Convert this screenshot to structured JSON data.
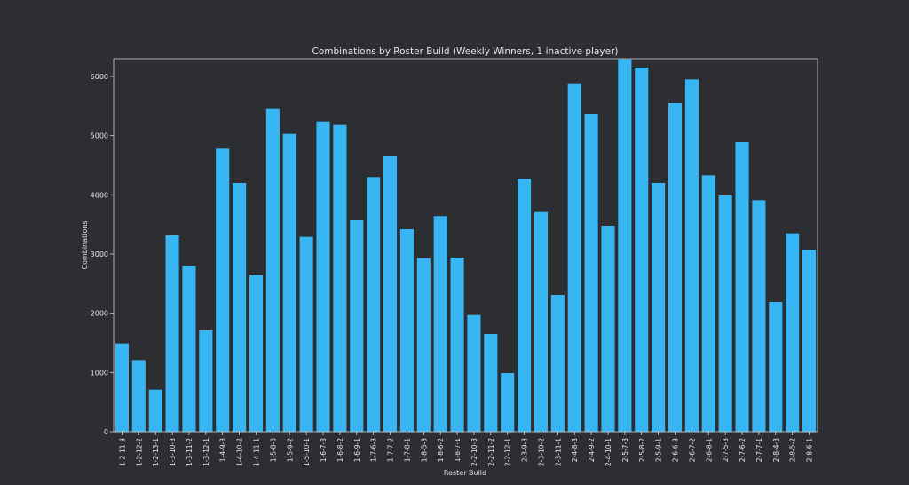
{
  "theme": {
    "background": "#2d2e32",
    "bar_color": "#38b6f4",
    "text_color": "#e6e6e6",
    "axis_color": "#d0d0d0"
  },
  "chart_data": {
    "type": "bar",
    "title": "Combinations by Roster Build (Weekly Winners, 1 inactive player)",
    "xlabel": "Roster Build",
    "ylabel": "Combinations",
    "ylim": [
      0,
      6300
    ],
    "yticks": [
      0,
      1000,
      2000,
      3000,
      4000,
      5000,
      6000
    ],
    "grid": false,
    "categories": [
      "1-2-11-3",
      "1-2-12-2",
      "1-2-13-1",
      "1-3-10-3",
      "1-3-11-2",
      "1-3-12-1",
      "1-4-9-3",
      "1-4-10-2",
      "1-4-11-1",
      "1-5-8-3",
      "1-5-9-2",
      "1-5-10-1",
      "1-6-7-3",
      "1-6-8-2",
      "1-6-9-1",
      "1-7-6-3",
      "1-7-7-2",
      "1-7-8-1",
      "1-8-5-3",
      "1-8-6-2",
      "1-8-7-1",
      "2-2-10-3",
      "2-2-11-2",
      "2-2-12-1",
      "2-3-9-3",
      "2-3-10-2",
      "2-3-11-1",
      "2-4-8-3",
      "2-4-9-2",
      "2-4-10-1",
      "2-5-7-3",
      "2-5-8-2",
      "2-5-9-1",
      "2-6-6-3",
      "2-6-7-2",
      "2-6-8-1",
      "2-7-5-3",
      "2-7-6-2",
      "2-7-7-1",
      "2-8-4-3",
      "2-8-5-2",
      "2-8-6-1"
    ],
    "values": [
      1490,
      1210,
      710,
      3320,
      2800,
      1710,
      4780,
      4200,
      2640,
      5450,
      5030,
      3290,
      5240,
      5180,
      3570,
      4300,
      4650,
      3420,
      2930,
      3640,
      2940,
      1970,
      1650,
      990,
      4270,
      3710,
      2310,
      5870,
      5370,
      3480,
      6290,
      6150,
      4200,
      5550,
      5950,
      4330,
      3990,
      4890,
      3910,
      2190,
      3350,
      3070
    ]
  }
}
